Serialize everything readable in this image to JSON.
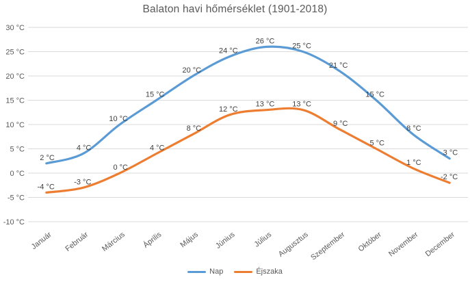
{
  "chart_data": {
    "type": "line",
    "title": "Balaton havi hőmérséklet (1901-2018)",
    "categories": [
      "Január",
      "Február",
      "Március",
      "Április",
      "Május",
      "Június",
      "Július",
      "Augusztus",
      "Szeptember",
      "Október",
      "November",
      "December"
    ],
    "series": [
      {
        "name": "Nap",
        "color": "#5B9BD5",
        "values": [
          2,
          4,
          10,
          15,
          20,
          24,
          26,
          25,
          21,
          15,
          8,
          3
        ]
      },
      {
        "name": "Éjszaka",
        "color": "#ED7D31",
        "values": [
          -4,
          -3,
          0,
          4,
          8,
          12,
          13,
          13,
          9,
          5,
          1,
          -2
        ]
      }
    ],
    "y_ticks": [
      "30 °C",
      "25 °C",
      "20 °C",
      "15 °C",
      "10 °C",
      "5 °C",
      "0 °C",
      "-5 °C",
      "-10 °C"
    ],
    "ylim": [
      -10,
      30
    ],
    "y_step": 5,
    "unit": "°C",
    "label_format": "{v} °C",
    "grid": true,
    "smooth": true,
    "legend_position": "bottom"
  },
  "colors": {
    "series_day": "#5B9BD5",
    "series_night": "#ED7D31",
    "gridline": "#D9D9D9",
    "axis_text": "#595959",
    "title_text": "#595959",
    "data_label": "#404040",
    "background": "#FFFFFF"
  }
}
